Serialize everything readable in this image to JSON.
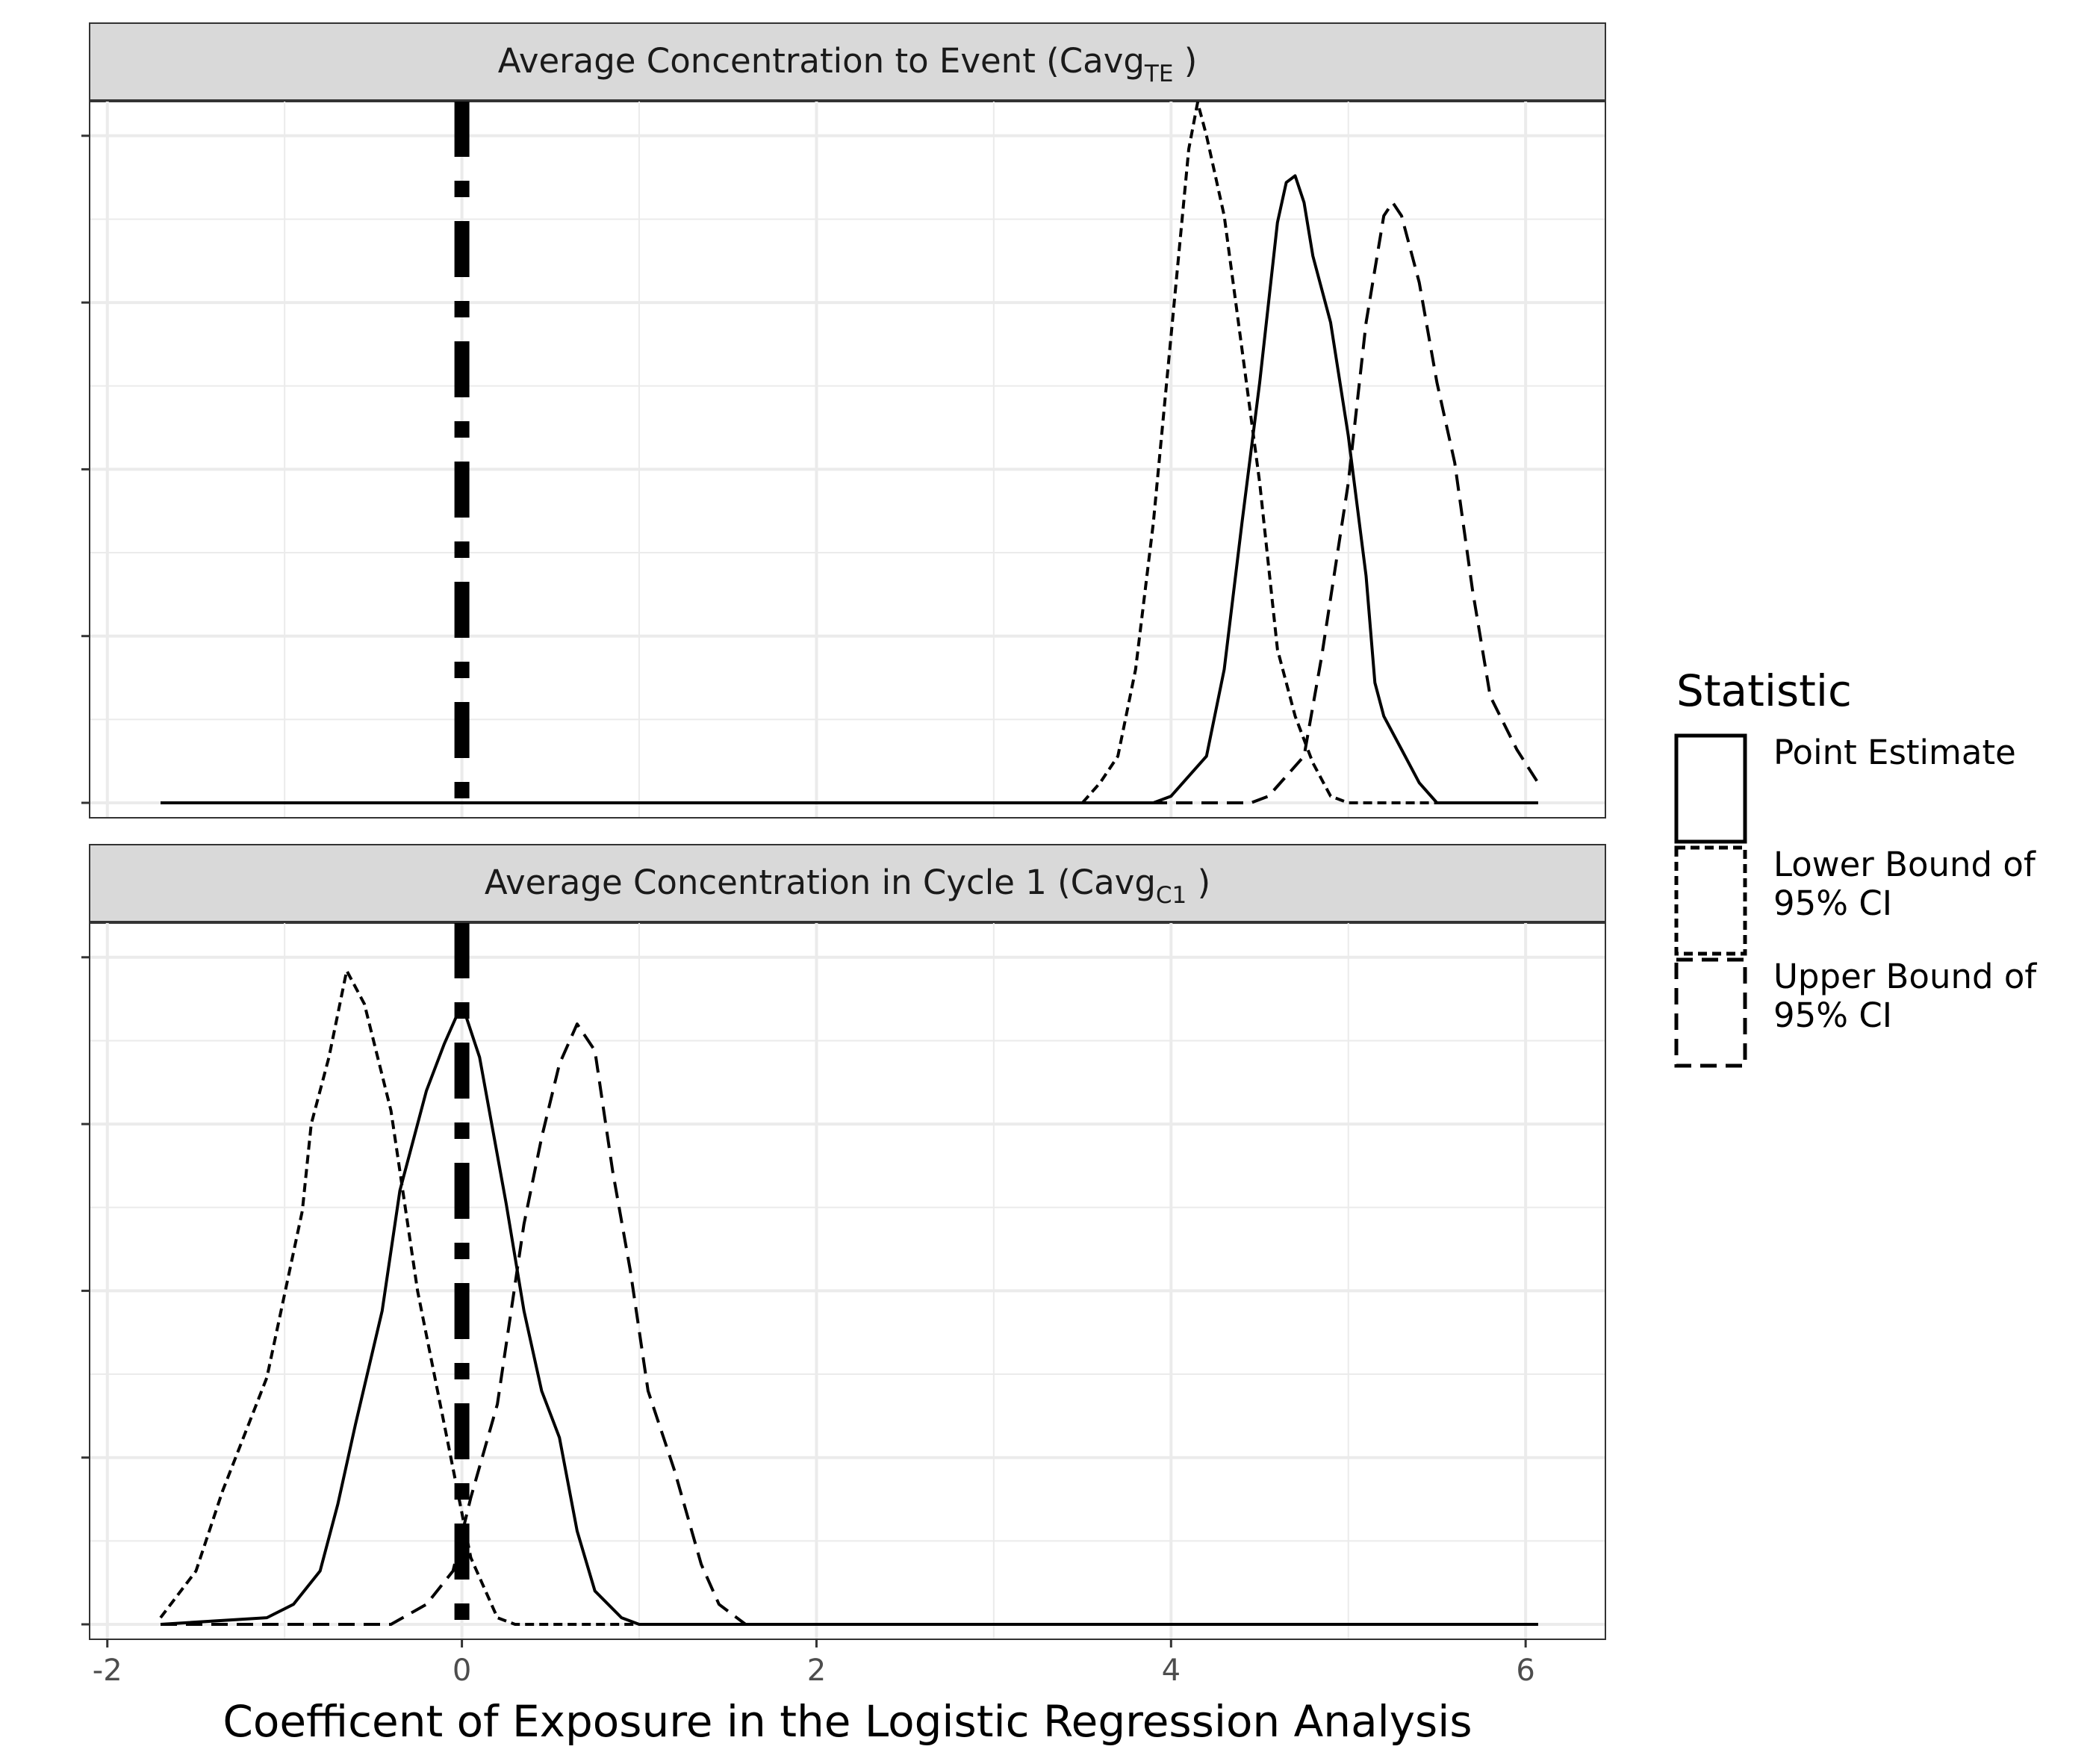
{
  "chart_data": {
    "type": "density",
    "xlabel": "Coefficent of Exposure in the Logistic Regression Analysis",
    "xlim": [
      -2.1,
      6.45
    ],
    "x_ticks": [
      -2,
      0,
      2,
      4,
      6
    ],
    "x_tick_labels": [
      "-2",
      "0",
      "2",
      "4",
      "6"
    ],
    "reference_line": {
      "x": 0,
      "style": "dashdot"
    },
    "grid": true,
    "y_tick_labels_shown": false,
    "legend": {
      "title": "Statistic",
      "position": "right",
      "entries": [
        {
          "label_lines": [
            "Point Estimate"
          ],
          "style": "solid"
        },
        {
          "label_lines": [
            "Lower Bound of",
            "95% CI"
          ],
          "style": "dotted"
        },
        {
          "label_lines": [
            "Upper Bound of",
            "95% CI"
          ],
          "style": "dashed"
        }
      ]
    },
    "panels": [
      {
        "title_main": "Average Concentration to Event (Cavg",
        "title_sub": "TE",
        "title_close": " )",
        "ylim": [
          0,
          1.03
        ],
        "series": [
          {
            "name": "Point Estimate",
            "style": "solid",
            "points": [
              [
                -1.7,
                0
              ],
              [
                3.9,
                0
              ],
              [
                4.0,
                0.01
              ],
              [
                4.1,
                0.04
              ],
              [
                4.2,
                0.07
              ],
              [
                4.3,
                0.2
              ],
              [
                4.4,
                0.42
              ],
              [
                4.5,
                0.63
              ],
              [
                4.6,
                0.87
              ],
              [
                4.65,
                0.93
              ],
              [
                4.7,
                0.94
              ],
              [
                4.75,
                0.9
              ],
              [
                4.8,
                0.82
              ],
              [
                4.9,
                0.72
              ],
              [
                5.0,
                0.55
              ],
              [
                5.1,
                0.34
              ],
              [
                5.15,
                0.18
              ],
              [
                5.2,
                0.13
              ],
              [
                5.3,
                0.08
              ],
              [
                5.4,
                0.03
              ],
              [
                5.5,
                0
              ],
              [
                6.07,
                0
              ]
            ]
          },
          {
            "name": "Lower Bound of 95% CI",
            "style": "dotted",
            "points": [
              [
                -1.7,
                0
              ],
              [
                3.5,
                0
              ],
              [
                3.6,
                0.03
              ],
              [
                3.7,
                0.07
              ],
              [
                3.8,
                0.2
              ],
              [
                3.9,
                0.42
              ],
              [
                4.0,
                0.7
              ],
              [
                4.1,
                0.98
              ],
              [
                4.15,
                1.05
              ],
              [
                4.2,
                1.0
              ],
              [
                4.3,
                0.88
              ],
              [
                4.4,
                0.68
              ],
              [
                4.5,
                0.48
              ],
              [
                4.6,
                0.23
              ],
              [
                4.7,
                0.13
              ],
              [
                4.8,
                0.06
              ],
              [
                4.9,
                0.01
              ],
              [
                5.0,
                0
              ],
              [
                6.07,
                0
              ]
            ]
          },
          {
            "name": "Upper Bound of 95% CI",
            "style": "dashed",
            "points": [
              [
                -1.7,
                0
              ],
              [
                4.45,
                0
              ],
              [
                4.55,
                0.01
              ],
              [
                4.65,
                0.04
              ],
              [
                4.75,
                0.07
              ],
              [
                4.85,
                0.22
              ],
              [
                5.0,
                0.48
              ],
              [
                5.1,
                0.72
              ],
              [
                5.2,
                0.88
              ],
              [
                5.25,
                0.9
              ],
              [
                5.3,
                0.88
              ],
              [
                5.4,
                0.78
              ],
              [
                5.5,
                0.63
              ],
              [
                5.6,
                0.51
              ],
              [
                5.7,
                0.32
              ],
              [
                5.8,
                0.16
              ],
              [
                5.95,
                0.08
              ],
              [
                6.07,
                0.03
              ]
            ]
          }
        ]
      },
      {
        "title_main": "Average Concentration in Cycle 1 (Cavg",
        "title_sub": "C1",
        "title_close": " )",
        "ylim": [
          0,
          1.03
        ],
        "series": [
          {
            "name": "Point Estimate",
            "style": "solid",
            "points": [
              [
                -1.7,
                0
              ],
              [
                -1.1,
                0.01
              ],
              [
                -0.95,
                0.03
              ],
              [
                -0.8,
                0.08
              ],
              [
                -0.7,
                0.18
              ],
              [
                -0.6,
                0.3
              ],
              [
                -0.45,
                0.47
              ],
              [
                -0.35,
                0.65
              ],
              [
                -0.2,
                0.8
              ],
              [
                -0.1,
                0.87
              ],
              [
                0,
                0.93
              ],
              [
                0.1,
                0.85
              ],
              [
                0.25,
                0.63
              ],
              [
                0.35,
                0.47
              ],
              [
                0.45,
                0.35
              ],
              [
                0.55,
                0.28
              ],
              [
                0.65,
                0.14
              ],
              [
                0.75,
                0.05
              ],
              [
                0.9,
                0.01
              ],
              [
                1.0,
                0
              ],
              [
                6.07,
                0
              ]
            ]
          },
          {
            "name": "Lower Bound of 95% CI",
            "style": "dotted",
            "points": [
              [
                -1.7,
                0.01
              ],
              [
                -1.5,
                0.08
              ],
              [
                -1.35,
                0.2
              ],
              [
                -1.1,
                0.37
              ],
              [
                -0.9,
                0.62
              ],
              [
                -0.85,
                0.75
              ],
              [
                -0.75,
                0.85
              ],
              [
                -0.65,
                0.98
              ],
              [
                -0.55,
                0.93
              ],
              [
                -0.4,
                0.77
              ],
              [
                -0.25,
                0.5
              ],
              [
                -0.1,
                0.3
              ],
              [
                0.05,
                0.1
              ],
              [
                0.2,
                0.01
              ],
              [
                0.3,
                0
              ],
              [
                6.07,
                0
              ]
            ]
          },
          {
            "name": "Upper Bound of 95% CI",
            "style": "dashed",
            "points": [
              [
                -1.7,
                0
              ],
              [
                -0.4,
                0
              ],
              [
                -0.2,
                0.03
              ],
              [
                -0.05,
                0.08
              ],
              [
                0.05,
                0.19
              ],
              [
                0.2,
                0.33
              ],
              [
                0.35,
                0.6
              ],
              [
                0.45,
                0.73
              ],
              [
                0.55,
                0.84
              ],
              [
                0.65,
                0.9
              ],
              [
                0.75,
                0.86
              ],
              [
                0.85,
                0.68
              ],
              [
                0.95,
                0.53
              ],
              [
                1.05,
                0.35
              ],
              [
                1.2,
                0.23
              ],
              [
                1.35,
                0.09
              ],
              [
                1.45,
                0.03
              ],
              [
                1.6,
                0
              ],
              [
                6.07,
                0
              ]
            ]
          }
        ]
      }
    ]
  }
}
